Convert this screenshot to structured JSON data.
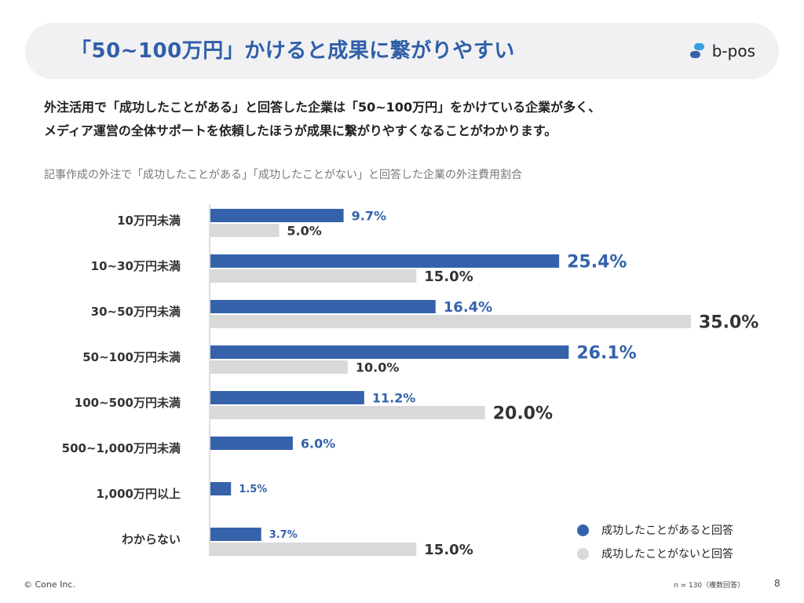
{
  "header": {
    "title": "「50~100万円」かけると成果に繋がりやすい",
    "logo_text": "b-pos"
  },
  "lead": {
    "line1": "外注活用で「成功したことがある」と回答した企業は「50~100万円」をかけている企業が多く、",
    "line2": "メディア運営の全体サポートを依頼したほうが成果に繋がりやすくなることがわかります。"
  },
  "subtitle": "記事作成の外注で「成功したことがある」「成功したことがない」と回答した企業の外注費用割合",
  "chart_data": {
    "type": "bar",
    "orientation": "horizontal",
    "categories": [
      "10万円未満",
      "10~30万円未満",
      "30~50万円未満",
      "50~100万円未満",
      "100~500万円未満",
      "500~1,000万円未満",
      "1,000万円以上",
      "わからない"
    ],
    "series": [
      {
        "name": "成功したことがあると回答",
        "color": "#3562ab",
        "values": [
          9.7,
          25.4,
          16.4,
          26.1,
          11.2,
          6.0,
          1.5,
          3.7
        ],
        "labels": [
          "9.7%",
          "25.4%",
          "16.4%",
          "26.1%",
          "11.2%",
          "6.0%",
          "1.5%",
          "3.7%"
        ]
      },
      {
        "name": "成功したことがないと回答",
        "color": "#d9d9d9",
        "values": [
          5.0,
          15.0,
          35.0,
          10.0,
          20.0,
          null,
          null,
          15.0
        ],
        "labels": [
          "5.0%",
          "15.0%",
          "35.0%",
          "10.0%",
          "20.0%",
          null,
          null,
          "15.0%"
        ]
      }
    ],
    "xlim": [
      0,
      35
    ],
    "grid": false,
    "legend_position": "bottom-right"
  },
  "footer": {
    "copyright": "© Cone Inc.",
    "note": "n = 130（複数回答）",
    "page": "8"
  }
}
